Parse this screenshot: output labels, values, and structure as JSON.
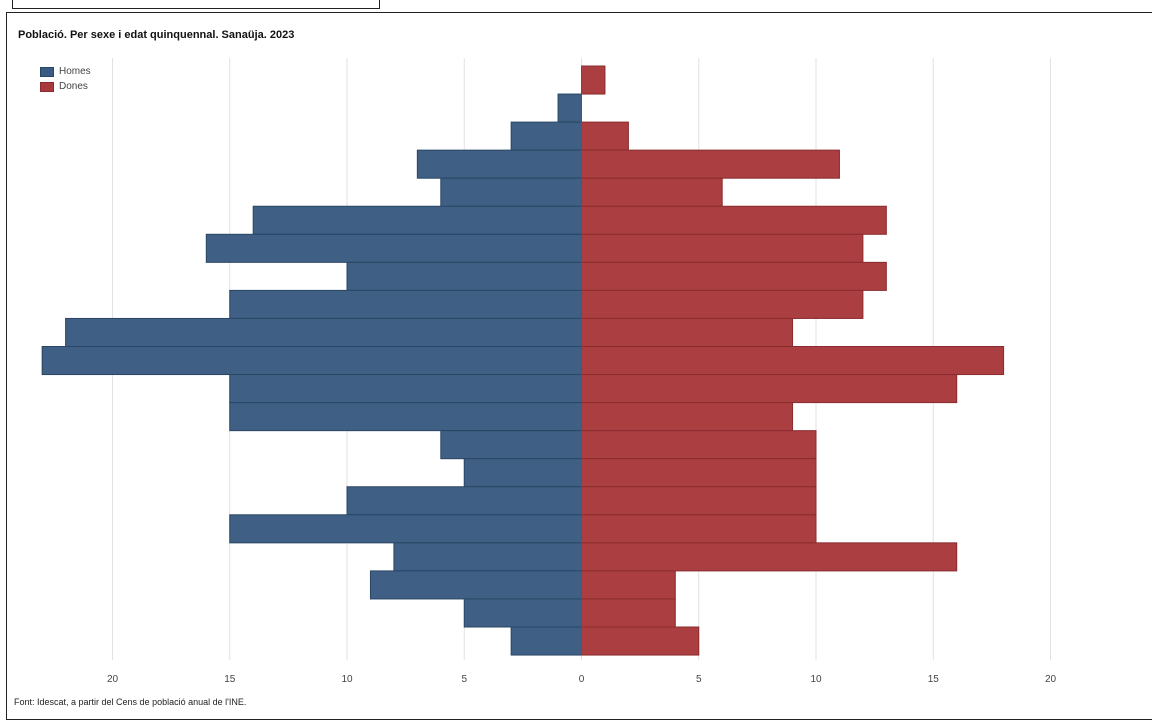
{
  "title": "Població. Per sexe i edat quinquennal. Sanaüja. 2023",
  "source": "Font: Idescat, a partir del Cens de població anual de l'INE.",
  "chart_data": {
    "type": "bar",
    "orientation": "horizontal",
    "title": "Població. Per sexe i edat quinquennal. Sanaüja. 2023",
    "xlabel": "",
    "ylabel": "",
    "xlim": [
      -20,
      20
    ],
    "x_ticks": [
      20,
      15,
      10,
      5,
      0,
      5,
      10,
      15,
      20
    ],
    "grid": true,
    "legend_position": "top-left",
    "series": [
      {
        "name": "Homes",
        "color": "#3b5c82",
        "values": [
          0,
          1,
          3,
          7,
          6,
          14,
          16,
          10,
          15,
          22,
          23,
          15,
          15,
          6,
          5,
          10,
          15,
          8,
          9,
          5,
          3
        ]
      },
      {
        "name": "Dones",
        "color": "#a83a3d",
        "values": [
          1,
          0,
          2,
          11,
          6,
          13,
          12,
          13,
          12,
          9,
          18,
          16,
          9,
          10,
          10,
          10,
          10,
          16,
          4,
          4,
          5
        ]
      }
    ]
  }
}
